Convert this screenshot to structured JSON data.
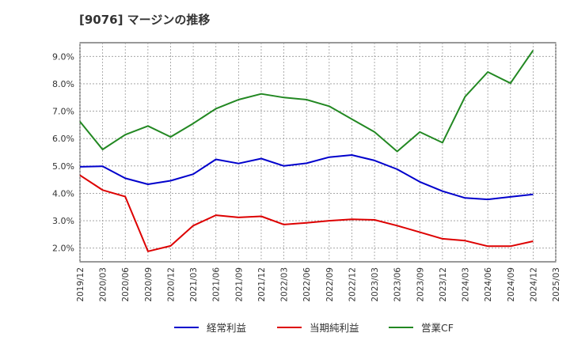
{
  "chart_data": {
    "type": "line",
    "title": "[9076]  マージンの推移",
    "xlabel": "",
    "ylabel": "",
    "ylim": [
      1.5,
      9.5
    ],
    "yticks": [
      "2.0%",
      "3.0%",
      "4.0%",
      "5.0%",
      "6.0%",
      "7.0%",
      "8.0%",
      "9.0%"
    ],
    "ytick_values": [
      2.0,
      3.0,
      4.0,
      5.0,
      6.0,
      7.0,
      8.0,
      9.0
    ],
    "x": [
      "2019/12",
      "2020/03",
      "2020/06",
      "2020/09",
      "2020/12",
      "2021/03",
      "2021/06",
      "2021/09",
      "2021/12",
      "2022/03",
      "2022/06",
      "2022/09",
      "2022/12",
      "2023/03",
      "2023/06",
      "2023/09",
      "2023/12",
      "2024/03",
      "2024/06",
      "2024/09",
      "2024/12",
      "2025/03"
    ],
    "grid": true,
    "legend_position": "bottom",
    "series": [
      {
        "name": "経常利益",
        "color": "#0000cc",
        "values": [
          4.97,
          4.99,
          4.55,
          4.33,
          4.46,
          4.7,
          5.24,
          5.09,
          5.27,
          5.0,
          5.1,
          5.32,
          5.4,
          5.2,
          4.88,
          4.42,
          4.08,
          3.83,
          3.78,
          3.87,
          3.96,
          null
        ]
      },
      {
        "name": "当期純利益",
        "color": "#dd0000",
        "values": [
          4.66,
          4.12,
          3.88,
          1.88,
          2.08,
          2.82,
          3.2,
          3.12,
          3.16,
          2.86,
          2.92,
          3.0,
          3.05,
          3.03,
          2.82,
          2.58,
          2.34,
          2.27,
          2.07,
          2.07,
          2.25,
          null
        ]
      },
      {
        "name": "営業CF",
        "color": "#228822",
        "values": [
          6.62,
          5.6,
          6.14,
          6.46,
          6.06,
          6.55,
          7.09,
          7.42,
          7.63,
          7.5,
          7.42,
          7.18,
          6.71,
          6.24,
          5.53,
          6.24,
          5.85,
          7.53,
          8.43,
          8.02,
          9.22,
          null
        ]
      }
    ]
  }
}
